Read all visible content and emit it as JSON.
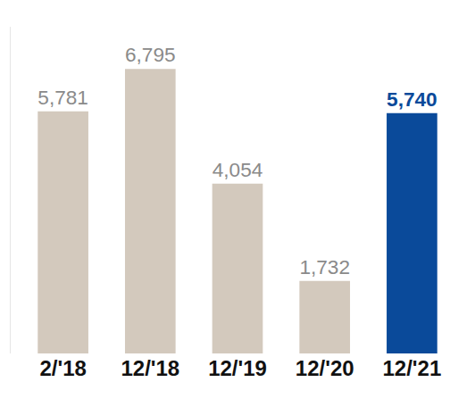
{
  "chart_data": {
    "type": "bar",
    "categories": [
      "2/'18",
      "12/'18",
      "12/'19",
      "12/'20",
      "12/'21"
    ],
    "values": [
      5781,
      6795,
      4054,
      1732,
      5740
    ],
    "value_labels": [
      "5,781",
      "6,795",
      "4,054",
      "1,732",
      "5,740"
    ],
    "colors": [
      "#d3c9bd",
      "#d3c9bd",
      "#d3c9bd",
      "#d3c9bd",
      "#0a4a9a"
    ],
    "ylim": [
      0,
      7800
    ],
    "data_labels": true,
    "tick_labels": "x",
    "grid": false
  }
}
